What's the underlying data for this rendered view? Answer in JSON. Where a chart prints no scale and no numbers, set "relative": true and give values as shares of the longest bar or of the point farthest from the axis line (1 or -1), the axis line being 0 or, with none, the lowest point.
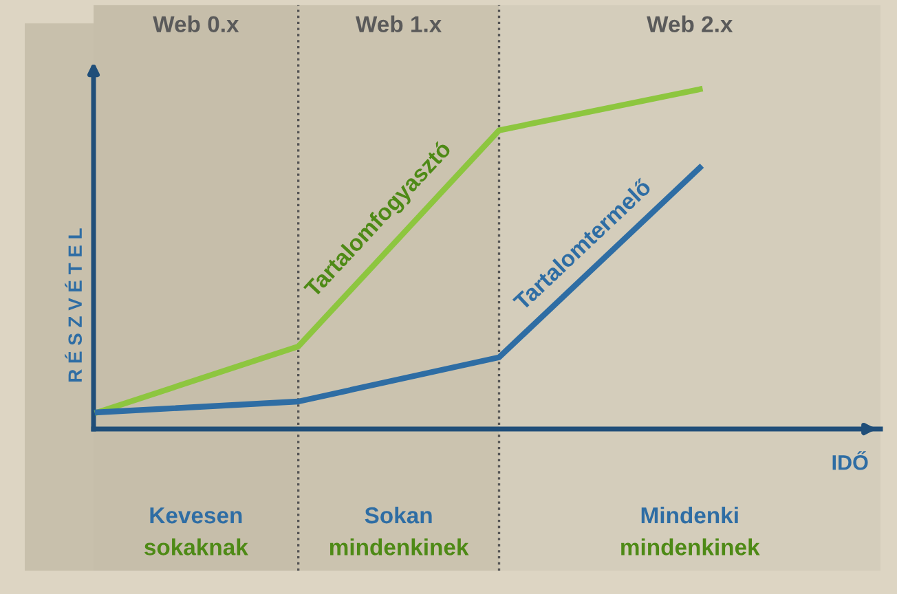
{
  "chart_data": {
    "type": "line",
    "relative": true,
    "line_style": "solid",
    "ylabel": "R É S Z V É T E L",
    "xlabel": "IDŐ",
    "categories": [
      null,
      null,
      null,
      null
    ],
    "series": [
      {
        "name": "Tartalomfogyasztó",
        "color": "#8dc63f",
        "values": [
          0.049,
          0.243,
          0.879,
          1.0
        ]
      },
      {
        "name": "Tartalomtermelő",
        "color": "#2e6da4",
        "values": [
          0.049,
          0.081,
          0.211,
          0.769
        ]
      }
    ],
    "annotations": [
      "Web 0.x",
      "Web 1.x",
      "Web 2.x",
      "Kevesen",
      "sokaknak",
      "Sokan",
      "mindenkinek",
      "Mindenki",
      "mindenkinek"
    ]
  }
}
